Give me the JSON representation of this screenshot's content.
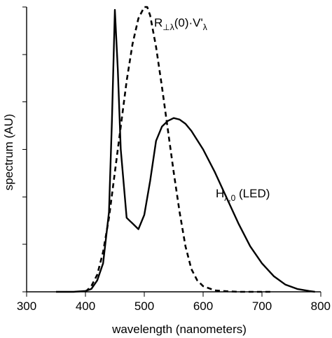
{
  "chart_data": {
    "type": "line",
    "xlabel": "wavelength (nanometers)",
    "ylabel": "spectrum (AU)",
    "xlim": [
      300,
      800
    ],
    "ylim": [
      0,
      1
    ],
    "x_ticks": [
      300,
      400,
      500,
      600,
      700,
      800
    ],
    "x_tick_labels": [
      "300",
      "400",
      "500",
      "600",
      "700",
      "800"
    ],
    "y_ticks": [
      0,
      0.167,
      0.333,
      0.5,
      0.667,
      0.833,
      1.0
    ],
    "grid": false,
    "series": [
      {
        "style": "solid",
        "x": [
          350,
          380,
          400,
          410,
          420,
          430,
          440,
          445,
          450,
          455,
          460,
          465,
          470,
          475,
          480,
          490,
          500,
          510,
          520,
          530,
          540,
          550,
          560,
          570,
          580,
          600,
          620,
          640,
          660,
          680,
          700,
          720,
          740,
          760,
          780,
          790
        ],
        "values": [
          0.0,
          0.0,
          0.003,
          0.01,
          0.04,
          0.1,
          0.28,
          0.6,
          0.99,
          0.78,
          0.5,
          0.38,
          0.26,
          0.25,
          0.24,
          0.22,
          0.27,
          0.39,
          0.53,
          0.58,
          0.6,
          0.61,
          0.605,
          0.59,
          0.565,
          0.5,
          0.42,
          0.33,
          0.24,
          0.16,
          0.1,
          0.055,
          0.025,
          0.01,
          0.003,
          0.0
        ],
        "annotation": "H",
        "annotation_sub": "λ,0",
        "annotation_suffix": " (LED)"
      },
      {
        "style": "dashed",
        "x": [
          400,
          410,
          420,
          430,
          440,
          450,
          460,
          470,
          480,
          490,
          500,
          505,
          510,
          520,
          530,
          540,
          550,
          560,
          570,
          580,
          590,
          600,
          620,
          640,
          660,
          680,
          700,
          720
        ],
        "values": [
          0.0,
          0.02,
          0.06,
          0.14,
          0.26,
          0.42,
          0.58,
          0.74,
          0.87,
          0.96,
          1.0,
          1.0,
          0.97,
          0.86,
          0.72,
          0.57,
          0.42,
          0.28,
          0.16,
          0.08,
          0.04,
          0.02,
          0.005,
          0.002,
          0.0,
          0.0,
          0.0,
          0.0
        ],
        "annotation": "R",
        "annotation_sub": "⊥λ",
        "annotation_suffix": "(0)·V'",
        "annotation_sub2": "λ"
      }
    ]
  }
}
